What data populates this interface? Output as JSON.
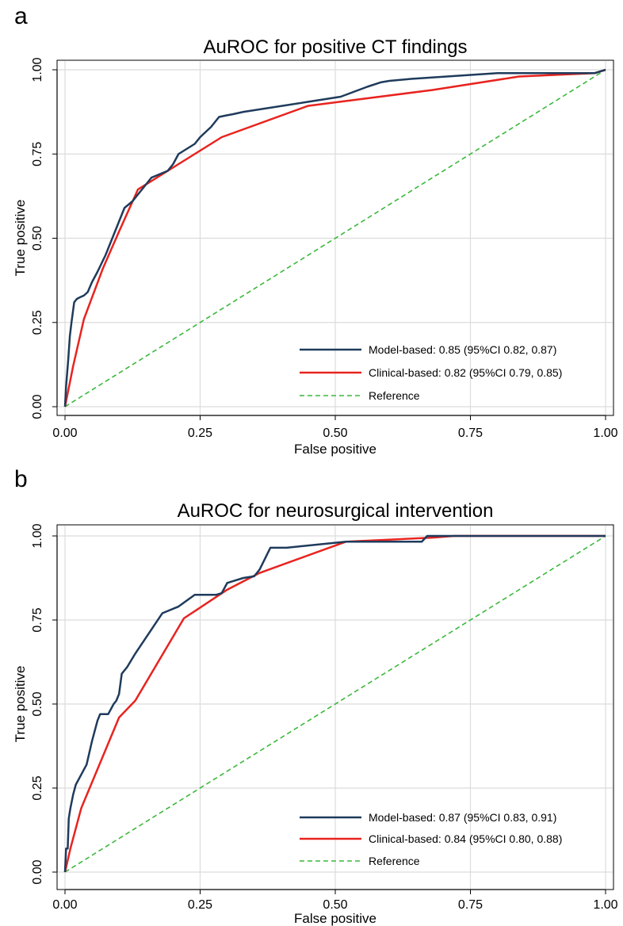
{
  "chart_data": [
    {
      "type": "line",
      "panel": "a",
      "title": "AuROC for positive CT findings",
      "xlabel": "False positive",
      "ylabel": "True positive",
      "xlim": [
        0,
        1
      ],
      "ylim": [
        0,
        1
      ],
      "xticks": [
        "0.00",
        "0.25",
        "0.50",
        "0.75",
        "1.00"
      ],
      "yticks": [
        "0.00",
        "0.25",
        "0.50",
        "0.75",
        "1.00"
      ],
      "grid": true,
      "legend_position": "bottom-right",
      "series": [
        {
          "name": "Model-based: 0.85 (95%CI 0.82, 0.87)",
          "color": "#1f3b5c",
          "dash": "solid",
          "x": [
            0,
            0.002,
            0.004,
            0.006,
            0.009,
            0.012,
            0.017,
            0.022,
            0.028,
            0.035,
            0.042,
            0.05,
            0.06,
            0.075,
            0.09,
            0.11,
            0.125,
            0.14,
            0.16,
            0.19,
            0.2,
            0.21,
            0.24,
            0.25,
            0.27,
            0.285,
            0.3,
            0.31,
            0.33,
            0.45,
            0.51,
            0.56,
            0.585,
            0.6,
            0.62,
            0.64,
            0.8,
            0.98,
            1.0
          ],
          "y": [
            0,
            0.06,
            0.1,
            0.14,
            0.21,
            0.25,
            0.31,
            0.32,
            0.325,
            0.33,
            0.34,
            0.37,
            0.4,
            0.45,
            0.51,
            0.59,
            0.61,
            0.64,
            0.68,
            0.7,
            0.72,
            0.75,
            0.78,
            0.8,
            0.83,
            0.86,
            0.865,
            0.868,
            0.875,
            0.905,
            0.92,
            0.95,
            0.963,
            0.967,
            0.97,
            0.973,
            0.99,
            0.99,
            1.0
          ]
        },
        {
          "name": "Clinical-based: 0.82 (95%CI 0.79, 0.85)",
          "color": "#e8231f",
          "dash": "solid",
          "x": [
            0,
            0.015,
            0.035,
            0.07,
            0.1,
            0.135,
            0.21,
            0.29,
            0.45,
            0.68,
            0.84,
            0.98,
            1.0
          ],
          "y": [
            0,
            0.12,
            0.26,
            0.41,
            0.52,
            0.645,
            0.72,
            0.8,
            0.893,
            0.94,
            0.98,
            0.99,
            1.0
          ]
        },
        {
          "name": "Reference",
          "color": "#3cb83c",
          "dash": "dashed",
          "x": [
            0,
            1
          ],
          "y": [
            0,
            1
          ]
        }
      ]
    },
    {
      "type": "line",
      "panel": "b",
      "title": "AuROC for neurosurgical intervention",
      "xlabel": "False positive",
      "ylabel": "True positive",
      "xlim": [
        0,
        1
      ],
      "ylim": [
        0,
        1
      ],
      "xticks": [
        "0.00",
        "0.25",
        "0.50",
        "0.75",
        "1.00"
      ],
      "yticks": [
        "0.00",
        "0.25",
        "0.50",
        "0.75",
        "1.00"
      ],
      "grid": true,
      "legend_position": "bottom-right",
      "series": [
        {
          "name": "Model-based: 0.87 (95%CI 0.83, 0.91)",
          "color": "#1f3b5c",
          "dash": "solid",
          "x": [
            0,
            0.002,
            0.005,
            0.007,
            0.01,
            0.015,
            0.02,
            0.03,
            0.04,
            0.05,
            0.06,
            0.065,
            0.08,
            0.09,
            0.095,
            0.1,
            0.105,
            0.115,
            0.13,
            0.18,
            0.21,
            0.24,
            0.28,
            0.29,
            0.3,
            0.31,
            0.33,
            0.35,
            0.36,
            0.38,
            0.41,
            0.52,
            0.66,
            0.67,
            1.0
          ],
          "y": [
            0,
            0.07,
            0.07,
            0.16,
            0.19,
            0.23,
            0.26,
            0.29,
            0.32,
            0.39,
            0.45,
            0.47,
            0.47,
            0.5,
            0.51,
            0.53,
            0.59,
            0.61,
            0.65,
            0.77,
            0.79,
            0.825,
            0.825,
            0.83,
            0.86,
            0.865,
            0.875,
            0.88,
            0.9,
            0.965,
            0.965,
            0.983,
            0.983,
            1.0,
            1.0
          ]
        },
        {
          "name": "Clinical-based: 0.84 (95%CI 0.80, 0.88)",
          "color": "#e8231f",
          "dash": "solid",
          "x": [
            0,
            0.01,
            0.03,
            0.1,
            0.13,
            0.22,
            0.3,
            0.36,
            0.52,
            0.68,
            0.72,
            1.0
          ],
          "y": [
            0,
            0.07,
            0.19,
            0.46,
            0.51,
            0.755,
            0.84,
            0.89,
            0.983,
            0.995,
            1.0,
            1.0
          ]
        },
        {
          "name": "Reference",
          "color": "#3cb83c",
          "dash": "dashed",
          "x": [
            0,
            1
          ],
          "y": [
            0,
            1
          ]
        }
      ]
    }
  ]
}
